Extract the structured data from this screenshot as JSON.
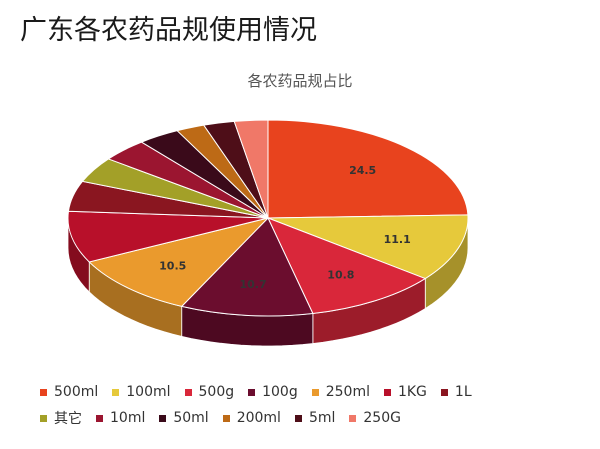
{
  "page_title": "广东各农药品规使用情况",
  "chart_data": {
    "type": "pie",
    "title": "各农药品规占比",
    "slices": [
      {
        "label": "500ml",
        "value": 24.5,
        "color": "#e8431e",
        "value_label": "24.5"
      },
      {
        "label": "100ml",
        "value": 11.1,
        "color": "#e6c93b",
        "value_label": "11.1"
      },
      {
        "label": "500g",
        "value": 10.8,
        "color": "#d9273a",
        "value_label": "10.8"
      },
      {
        "label": "100g",
        "value": 10.7,
        "color": "#6b0d2e",
        "value_label": "10.7"
      },
      {
        "label": "250ml",
        "value": 10.5,
        "color": "#ea9a2d",
        "value_label": "10.5"
      },
      {
        "label": "1KG",
        "value": 8.5,
        "color": "#b8102a",
        "value_label": ""
      },
      {
        "label": "1L",
        "value": 5.0,
        "color": "#8a1620",
        "value_label": ""
      },
      {
        "label": "其它",
        "value": 4.2,
        "color": "#a3a028",
        "value_label": ""
      },
      {
        "label": "10ml",
        "value": 3.8,
        "color": "#9b1530",
        "value_label": ""
      },
      {
        "label": "50ml",
        "value": 3.4,
        "color": "#3a0a1a",
        "value_label": ""
      },
      {
        "label": "200ml",
        "value": 2.3,
        "color": "#bd6a16",
        "value_label": ""
      },
      {
        "label": "5ml",
        "value": 2.5,
        "color": "#4e0e18",
        "value_label": ""
      },
      {
        "label": "250G",
        "value": 2.7,
        "color": "#f07868",
        "value_label": ""
      }
    ],
    "legend_position": "bottom"
  }
}
